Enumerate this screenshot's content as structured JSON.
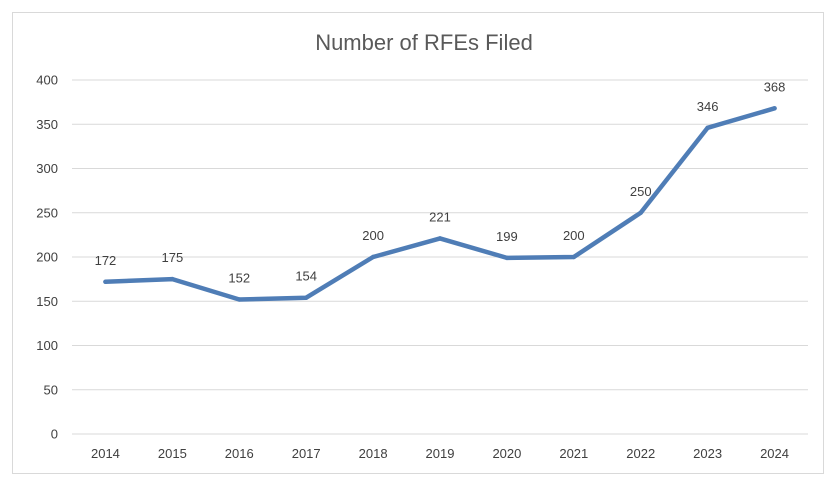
{
  "chart_data": {
    "type": "line",
    "title": "Number of RFEs Filed",
    "xlabel": "",
    "ylabel": "",
    "categories": [
      "2014",
      "2015",
      "2016",
      "2017",
      "2018",
      "2019",
      "2020",
      "2021",
      "2022",
      "2023",
      "2024"
    ],
    "series": [
      {
        "values": [
          172,
          175,
          152,
          154,
          200,
          221,
          199,
          200,
          250,
          346,
          368
        ],
        "color": "#4f7db6"
      }
    ],
    "ylim": [
      0,
      400
    ],
    "yticks": [
      0,
      50,
      100,
      150,
      200,
      250,
      300,
      350,
      400
    ],
    "grid": true,
    "legend": "none",
    "data_labels": true
  }
}
